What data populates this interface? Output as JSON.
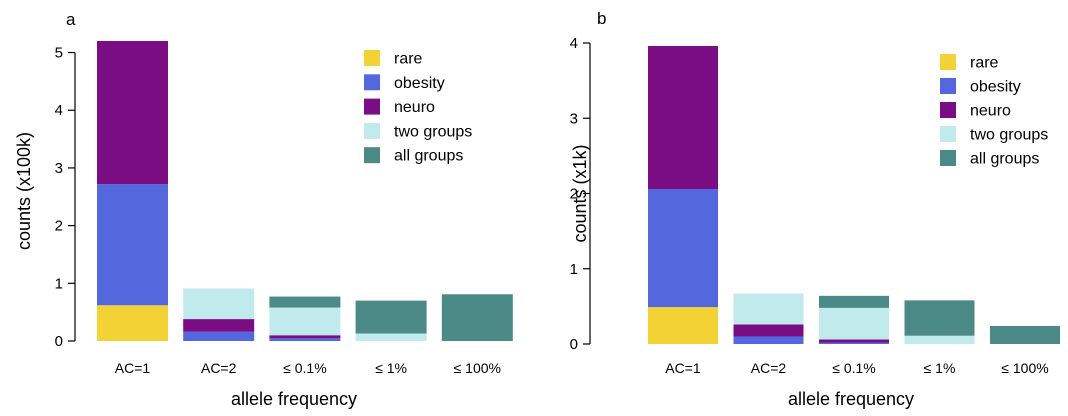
{
  "colors": {
    "rare": "#f2d235",
    "obesity": "#5368dc",
    "neuro": "#7b0d84",
    "two_groups": "#c1eaec",
    "all_groups": "#4b8a87",
    "axis": "#000000"
  },
  "chart_data": [
    {
      "panel_label": "a",
      "type": "bar",
      "stacked": true,
      "xlabel": "allele frequency",
      "ylabel": "counts (x100k)",
      "ylim": [
        0,
        5.2
      ],
      "yticks": [
        0,
        1,
        2,
        3,
        4,
        5
      ],
      "categories": [
        "AC=1",
        "AC=2",
        "≤ 0.1%",
        "≤ 1%",
        "≤ 100%"
      ],
      "series": [
        {
          "name": "rare",
          "color_key": "rare",
          "values": [
            0.62,
            0,
            0,
            0,
            0
          ]
        },
        {
          "name": "obesity",
          "color_key": "obesity",
          "values": [
            2.1,
            0.16,
            0.05,
            0,
            0
          ]
        },
        {
          "name": "neuro",
          "color_key": "neuro",
          "values": [
            2.48,
            0.22,
            0.05,
            0,
            0
          ]
        },
        {
          "name": "two groups",
          "color_key": "two_groups",
          "values": [
            0,
            0.53,
            0.48,
            0.13,
            0
          ]
        },
        {
          "name": "all groups",
          "color_key": "all_groups",
          "values": [
            0,
            0,
            0.19,
            0.57,
            0.81
          ]
        }
      ],
      "legend_position": "top-right"
    },
    {
      "panel_label": "b",
      "type": "bar",
      "stacked": true,
      "xlabel": "allele frequency",
      "ylabel": "counts (x1k)",
      "ylim": [
        0,
        4
      ],
      "yticks": [
        0,
        1,
        2,
        3,
        4
      ],
      "categories": [
        "AC=1",
        "AC=2",
        "≤ 0.1%",
        "≤ 1%",
        "≤ 100%"
      ],
      "series": [
        {
          "name": "rare",
          "color_key": "rare",
          "values": [
            0.49,
            0,
            0,
            0,
            0
          ]
        },
        {
          "name": "obesity",
          "color_key": "obesity",
          "values": [
            1.57,
            0.1,
            0.02,
            0,
            0
          ]
        },
        {
          "name": "neuro",
          "color_key": "neuro",
          "values": [
            1.9,
            0.16,
            0.04,
            0,
            0
          ]
        },
        {
          "name": "two groups",
          "color_key": "two_groups",
          "values": [
            0,
            0.41,
            0.42,
            0.11,
            0
          ]
        },
        {
          "name": "all groups",
          "color_key": "all_groups",
          "values": [
            0,
            0,
            0.16,
            0.47,
            0.24
          ]
        }
      ],
      "legend_position": "top-right"
    }
  ]
}
